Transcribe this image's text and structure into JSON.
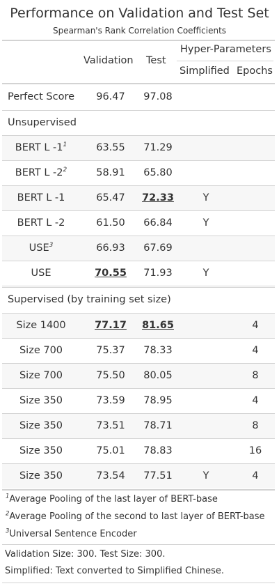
{
  "title": "Performance on Validation and Test Set",
  "subtitle": "Spearman's Rank Correlation Coefficients",
  "headers": {
    "validation": "Validation",
    "test": "Test",
    "spanner": "Hyper-Parameters",
    "simplified": "Simplified",
    "epochs": "Epochs"
  },
  "top_row": {
    "name": "Perfect Score",
    "validation": "96.47",
    "test": "97.08"
  },
  "groups": {
    "unsupervised": "Unsupervised",
    "supervised": "Supervised (by training set size)"
  },
  "unsupervised_rows": [
    {
      "name": "BERT L -1",
      "mark": "1",
      "validation": "63.55",
      "test": "71.29",
      "simplified": "",
      "epochs": ""
    },
    {
      "name": "BERT L -2",
      "mark": "2",
      "validation": "58.91",
      "test": "65.80",
      "simplified": "",
      "epochs": ""
    },
    {
      "name": "BERT L -1",
      "mark": "",
      "validation": "65.47",
      "test": "72.33",
      "simplified": "Y",
      "epochs": ""
    },
    {
      "name": "BERT L -2",
      "mark": "",
      "validation": "61.50",
      "test": "66.84",
      "simplified": "Y",
      "epochs": ""
    },
    {
      "name": "USE",
      "mark": "3",
      "validation": "66.93",
      "test": "67.69",
      "simplified": "",
      "epochs": ""
    },
    {
      "name": "USE",
      "mark": "",
      "validation": "70.55",
      "test": "71.93",
      "simplified": "Y",
      "epochs": ""
    }
  ],
  "supervised_rows": [
    {
      "name": "Size 1400",
      "validation": "77.17",
      "test": "81.65",
      "simplified": "",
      "epochs": "4"
    },
    {
      "name": "Size 700",
      "validation": "75.37",
      "test": "78.33",
      "simplified": "",
      "epochs": "4"
    },
    {
      "name": "Size 700",
      "validation": "75.50",
      "test": "80.05",
      "simplified": "",
      "epochs": "8"
    },
    {
      "name": "Size 350",
      "validation": "73.59",
      "test": "78.95",
      "simplified": "",
      "epochs": "4"
    },
    {
      "name": "Size 350",
      "validation": "73.51",
      "test": "78.71",
      "simplified": "",
      "epochs": "8"
    },
    {
      "name": "Size 350",
      "validation": "75.01",
      "test": "78.83",
      "simplified": "",
      "epochs": "16"
    },
    {
      "name": "Size 350",
      "validation": "73.54",
      "test": "77.51",
      "simplified": "Y",
      "epochs": "4"
    }
  ],
  "footnotes": [
    {
      "mark": "1",
      "text": "Average Pooling of the last layer of BERT-base"
    },
    {
      "mark": "2",
      "text": "Average Pooling of the second to last layer of BERT-base"
    },
    {
      "mark": "3",
      "text": "Universal Sentence Encoder"
    }
  ],
  "source_notes": [
    "Validation Size: 300. Test Size: 300.",
    "Simplified: Text converted to Simplified Chinese."
  ],
  "emphasis": {
    "best_unsupervised_validation": "70.55",
    "best_unsupervised_test": "72.33",
    "best_supervised_validation": "77.17",
    "best_supervised_test": "81.65"
  },
  "colors": {
    "text": "#333333",
    "rule": "#d3d3d3",
    "stripe": "#f7f7f7"
  }
}
